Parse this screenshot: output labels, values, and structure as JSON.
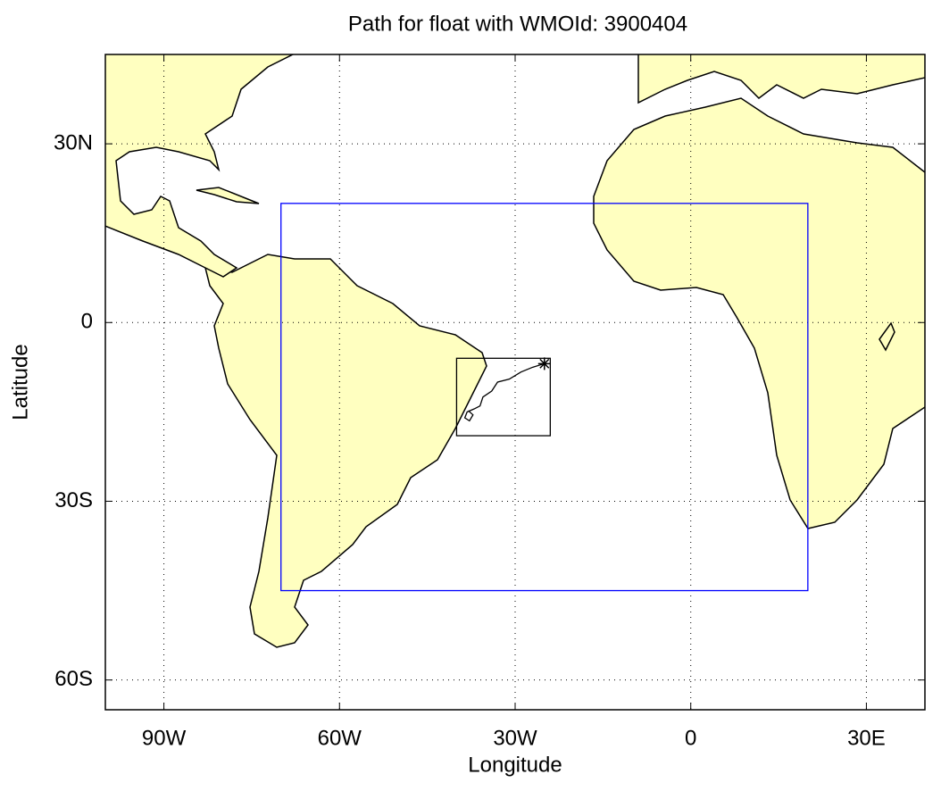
{
  "chart_data": {
    "type": "map",
    "title": "Path for float with WMOId: 3900404",
    "x_label": "Longitude",
    "y_label": "Latitude",
    "xlim": [
      -100,
      40
    ],
    "ylim": [
      -65,
      45
    ],
    "xticks": [
      {
        "value": -90,
        "label": "90W"
      },
      {
        "value": -60,
        "label": "60W"
      },
      {
        "value": -30,
        "label": "30W"
      },
      0,
      {
        "value": 30,
        "label": "30E"
      }
    ],
    "yticks": [
      {
        "value": -60,
        "label": "60S"
      },
      {
        "value": -30,
        "label": "30S"
      },
      0,
      {
        "value": 30,
        "label": "30N"
      }
    ],
    "grid": true,
    "land_color": "#ffffc0",
    "boxes": [
      {
        "lon": [
          -70,
          20
        ],
        "lat": [
          -45,
          20
        ],
        "color": "#0000ff"
      },
      {
        "lon": [
          -40,
          -24
        ],
        "lat": [
          -19,
          -6
        ],
        "color": "#000000"
      }
    ],
    "path": {
      "color": "#000000",
      "x": [
        -25,
        -27,
        -29,
        -31,
        -33,
        -34,
        -35.5,
        -36,
        -37,
        -38.2,
        -38.6,
        -37.8,
        -37.2,
        -38
      ],
      "y": [
        -6.9,
        -7.5,
        -8.3,
        -9.5,
        -10,
        -11.5,
        -12.5,
        -14,
        -14.5,
        -15,
        -16,
        -16.5,
        -15.5,
        -14.8
      ]
    }
  }
}
